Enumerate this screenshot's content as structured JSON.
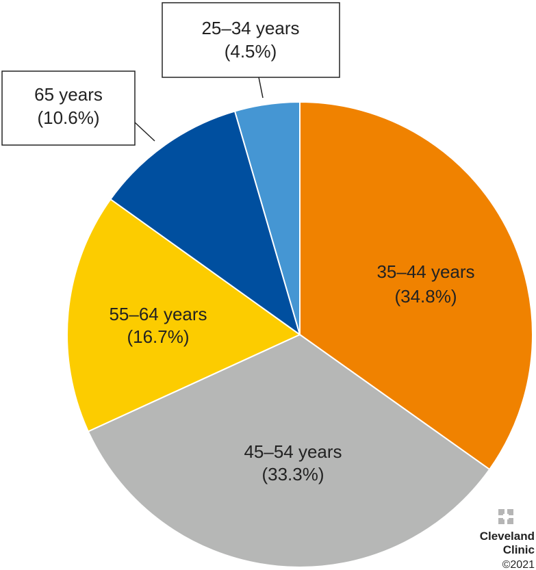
{
  "chart_data": {
    "type": "pie",
    "title": "",
    "start_angle_deg": 0,
    "direction": "clockwise",
    "slices": [
      {
        "label": "35–44 years",
        "pct_text": "(34.8%)",
        "value": 34.8,
        "color": "#f08200"
      },
      {
        "label": "45–54 years",
        "pct_text": "(33.3%)",
        "value": 33.3,
        "color": "#b6b7b6"
      },
      {
        "label": "55–64 years",
        "pct_text": "(16.7%)",
        "value": 16.7,
        "color": "#fccc00"
      },
      {
        "label": "65 years",
        "pct_text": "(10.6%)",
        "value": 10.6,
        "color": "#004f9f"
      },
      {
        "label": "25–34 years",
        "pct_text": "(4.5%)",
        "value": 4.5,
        "color": "#4596d3"
      }
    ]
  },
  "watermark": {
    "name_line1": "Cleveland",
    "name_line2": "Clinic",
    "copyright": "©2021",
    "color": "#b5b5b5"
  }
}
